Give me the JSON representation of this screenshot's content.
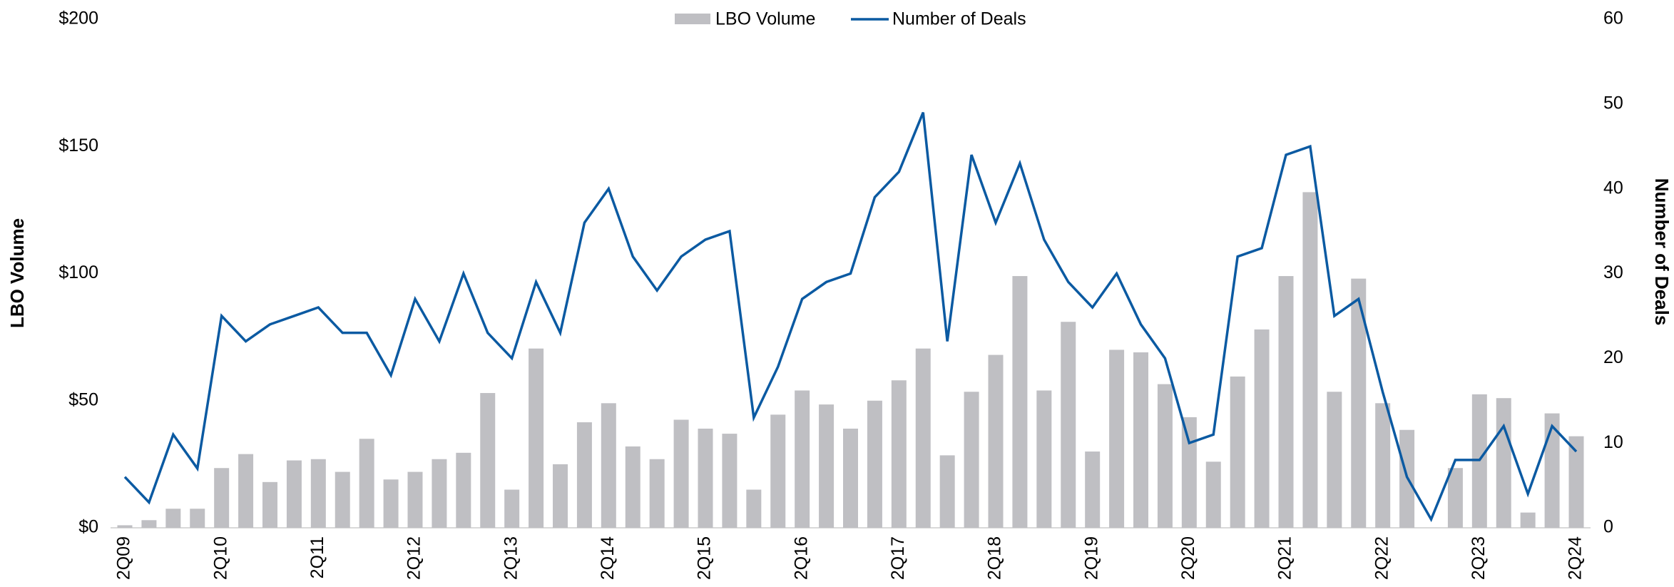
{
  "chart_data": {
    "type": "bar_line",
    "legend": "top",
    "categories": [
      "2Q09",
      null,
      null,
      null,
      "2Q10",
      null,
      null,
      null,
      "2Q11",
      null,
      null,
      null,
      "2Q12",
      null,
      null,
      null,
      "2Q13",
      null,
      null,
      null,
      "2Q14",
      null,
      null,
      null,
      "2Q15",
      null,
      null,
      null,
      "2Q16",
      null,
      null,
      null,
      "2Q17",
      null,
      null,
      null,
      "2Q18",
      null,
      null,
      null,
      "2Q19",
      null,
      null,
      null,
      "2Q20",
      null,
      null,
      null,
      "2Q21",
      null,
      null,
      null,
      "2Q22",
      null,
      null,
      null,
      "2Q23",
      null,
      null,
      null,
      "2Q24"
    ],
    "series": [
      {
        "name": "LBO Volume",
        "type": "bar",
        "color": "#bfbfc3",
        "values": [
          1,
          3,
          7.5,
          7.5,
          23.5,
          29,
          18,
          26.5,
          27,
          22,
          35,
          19,
          22,
          27,
          29.5,
          53,
          15,
          70.5,
          25,
          41.5,
          49,
          32,
          27,
          42.5,
          39,
          37,
          15,
          44.5,
          54,
          48.5,
          39,
          50,
          58,
          70.5,
          28.5,
          53.5,
          68,
          99,
          54,
          81,
          30,
          70,
          69,
          56.5,
          43.5,
          26,
          59.5,
          78,
          99,
          132,
          53.5,
          98,
          49,
          38.5,
          0,
          23.5,
          52.5,
          51,
          6,
          45,
          36
        ]
      },
      {
        "name": "Number of Deals",
        "type": "line",
        "axis": "y2",
        "color": "#0b5aa2",
        "values": [
          6,
          3,
          11,
          7,
          25,
          22,
          24,
          25,
          26,
          23,
          23,
          18,
          27,
          22,
          30,
          23,
          20,
          29,
          23,
          36,
          40,
          32,
          28,
          32,
          34,
          35,
          13,
          19,
          27,
          29,
          30,
          39,
          42,
          49,
          22,
          44,
          36,
          43,
          34,
          29,
          26,
          30,
          24,
          20,
          10,
          11,
          32,
          33,
          44,
          45,
          25,
          27,
          16,
          6,
          1,
          8,
          8,
          12,
          4,
          12,
          9
        ]
      }
    ],
    "ylabel": "LBO Volume",
    "y2label": "Number of Deals",
    "ylim": [
      0,
      200
    ],
    "yticks": [
      {
        "value": 0,
        "label": "$0"
      },
      {
        "value": 50,
        "label": "$50"
      },
      {
        "value": 100,
        "label": "$100"
      },
      {
        "value": 150,
        "label": "$150"
      },
      {
        "value": 200,
        "label": "$200"
      }
    ],
    "y2lim": [
      0,
      60
    ],
    "y2ticks": [
      0,
      10,
      20,
      30,
      40,
      50,
      60
    ]
  }
}
